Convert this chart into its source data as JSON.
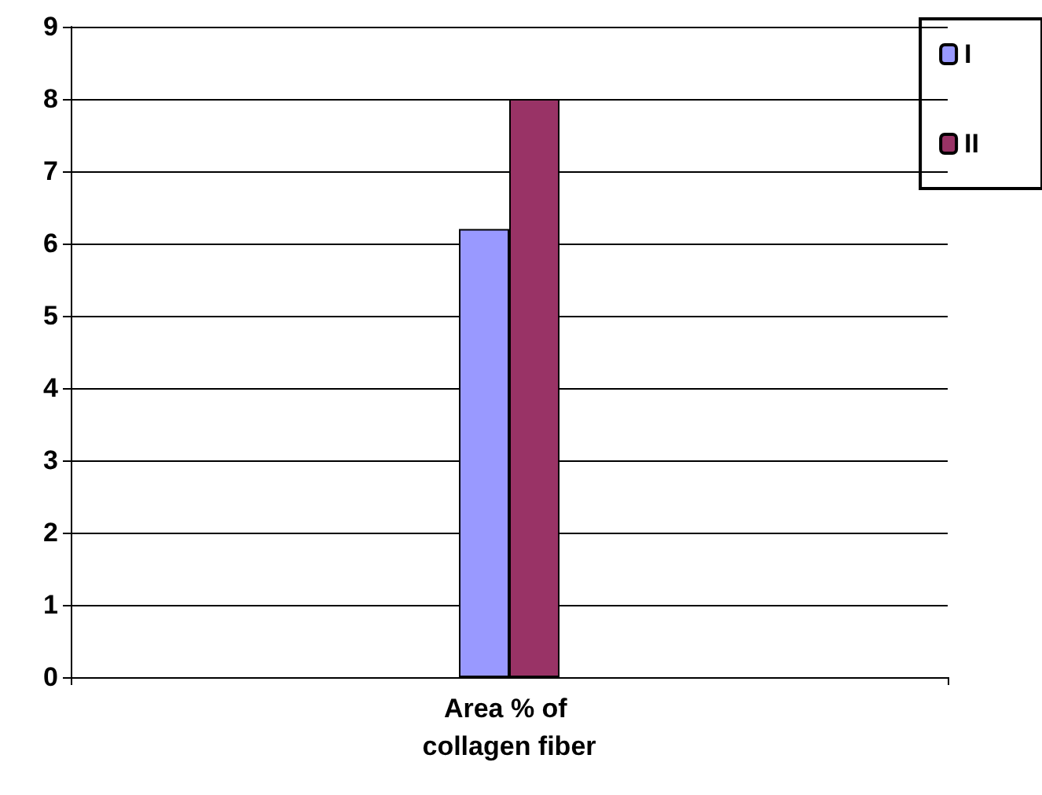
{
  "chart_data": {
    "type": "bar",
    "categories": [
      "Area % of collagen fiber"
    ],
    "series": [
      {
        "name": "I",
        "color": "#9999ff",
        "values": [
          6.2
        ]
      },
      {
        "name": "II",
        "color": "#993366",
        "values": [
          8.0
        ]
      }
    ],
    "ylim": [
      0,
      9
    ],
    "yticks": [
      0,
      1,
      2,
      3,
      4,
      5,
      6,
      7,
      8,
      9
    ],
    "grid": "y",
    "legend": "top right"
  }
}
